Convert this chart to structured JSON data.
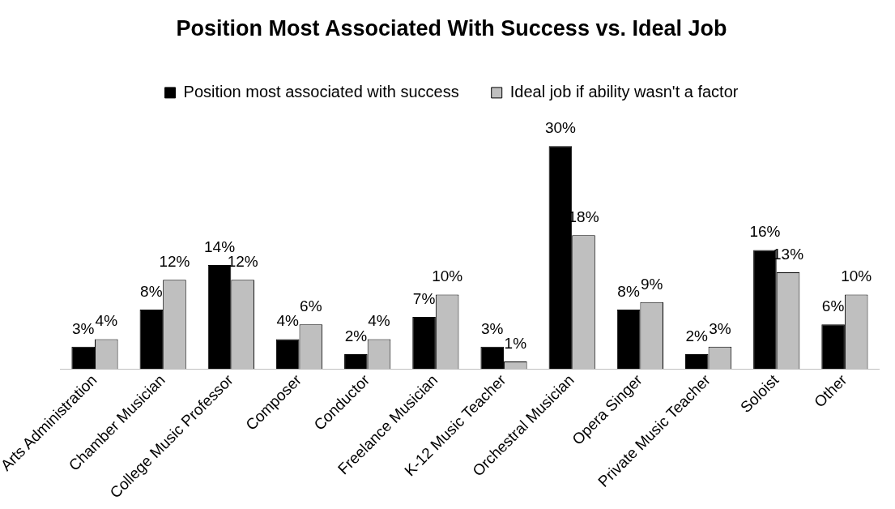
{
  "chart_data": {
    "type": "bar",
    "title": "Position Most Associated With Success vs. Ideal Job",
    "categories": [
      "Arts Administration",
      "Chamber Musician",
      "College Music Professor",
      "Composer",
      "Conductor",
      "Freelance Musician",
      "K-12 Music Teacher",
      "Orchestral Musician",
      "Opera Singer",
      "Private Music Teacher",
      "Soloist",
      "Other"
    ],
    "series": [
      {
        "name": "Position most associated with success",
        "color": "#000000",
        "values": [
          3,
          8,
          14,
          4,
          2,
          7,
          3,
          30,
          8,
          2,
          16,
          6
        ],
        "value_labels": [
          "3%",
          "8%",
          "14%",
          "4%",
          "2%",
          "7%",
          "3%",
          "30%",
          "8%",
          "2%",
          "16%",
          "6%"
        ]
      },
      {
        "name": "Ideal job if ability wasn't a factor",
        "color": "#bfbfbf",
        "values": [
          4,
          12,
          12,
          6,
          4,
          10,
          1,
          18,
          9,
          3,
          13,
          10
        ],
        "value_labels": [
          "4%",
          "12%",
          "12%",
          "6%",
          "4%",
          "10%",
          "1%",
          "18%",
          "9%",
          "3%",
          "13%",
          "10%"
        ]
      }
    ],
    "legend": "top",
    "grid": false,
    "tick_labels": "x"
  }
}
